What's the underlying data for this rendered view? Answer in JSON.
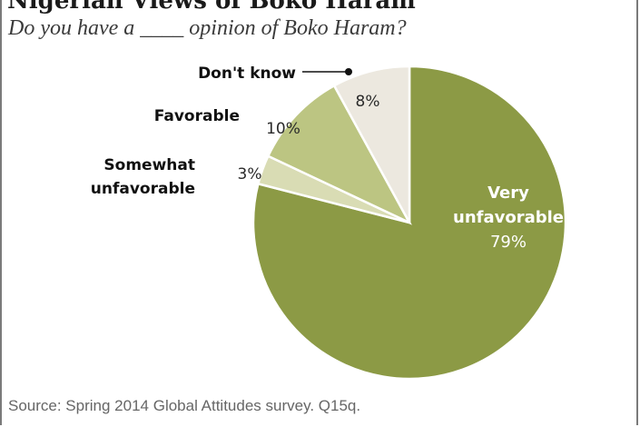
{
  "title": "Nigerian Views of Boko Haram",
  "subtitle": "Do you have a ____ opinion of Boko Haram?",
  "source": "Source: Spring 2014 Global Attitudes survey. Q15q.",
  "chart_data": {
    "type": "pie",
    "start_angle_deg": 0,
    "direction": "clockwise",
    "slices": [
      {
        "label": "Very unfavorable",
        "label_lines": [
          "Very",
          "unfavorable"
        ],
        "value": 79,
        "display": "79%",
        "color": "#8c9a45"
      },
      {
        "label": "Somewhat unfavorable",
        "label_lines": [
          "Somewhat",
          "unfavorable"
        ],
        "value": 3,
        "display": "3%",
        "color": "#d9dcb4"
      },
      {
        "label": "Favorable",
        "label_lines": [
          "Favorable"
        ],
        "value": 10,
        "display": "10%",
        "color": "#bcc582"
      },
      {
        "label": "Don't know",
        "label_lines": [
          "Don't know"
        ],
        "value": 8,
        "display": "8%",
        "color": "#ece8df"
      }
    ],
    "legend": "none"
  }
}
